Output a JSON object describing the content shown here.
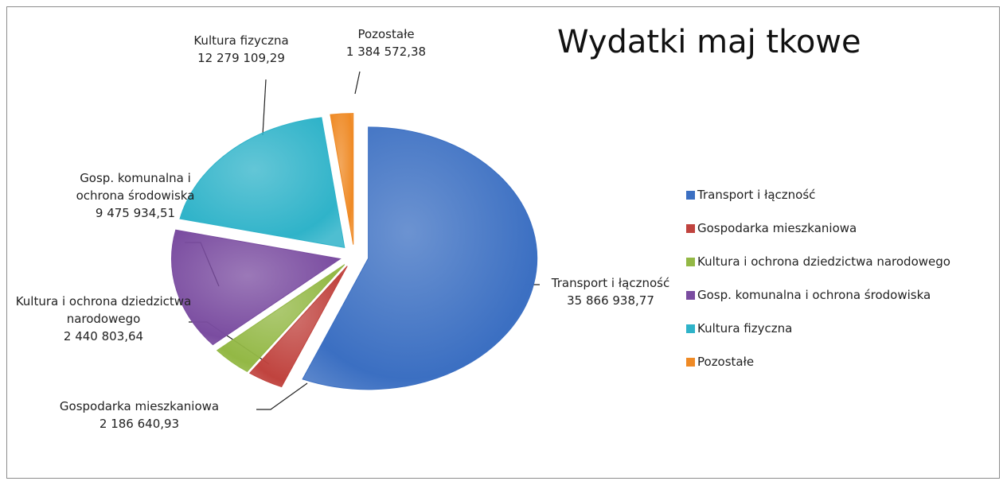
{
  "chart_data": {
    "type": "pie",
    "title": "Wydatki maj tkowe",
    "categories": [
      "Transport i łączność",
      "Gospodarka mieszkaniowa",
      "Kultura i ochrona dziedzictwa narodowego",
      "Gosp. komunalna i ochrona środowiska",
      "Kultura fizyczna",
      "Pozostałe"
    ],
    "values": [
      35866938.77,
      2186640.93,
      2440803.64,
      9475934.51,
      12279109.29,
      1384572.38
    ],
    "value_labels": [
      "35 866 938,77",
      "2 186 640,93",
      "2 440 803,64",
      "9 475 934,51",
      "12 279 109,29",
      "1 384 572,38"
    ],
    "colors": [
      "#3b6fc2",
      "#c0433e",
      "#93b845",
      "#7a4ca0",
      "#2fb3c9",
      "#ef8a25"
    ],
    "legend": "right"
  }
}
